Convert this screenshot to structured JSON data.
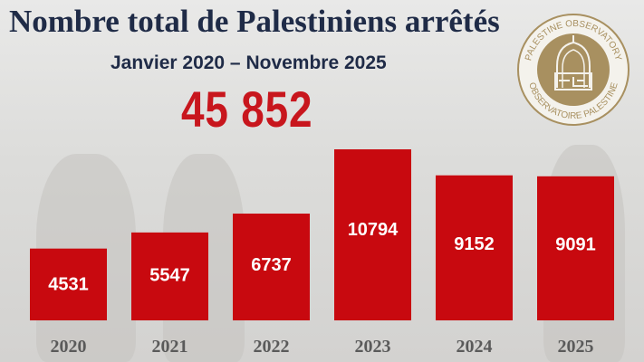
{
  "header": {
    "title": "Nombre total de Palestiniens arrêtés",
    "subtitle": "Janvier 2020 – Novembre 2025",
    "total": "45 852"
  },
  "logo": {
    "top_text": "PALESTINE OBSERVATORY",
    "bottom_text": "OBSERVATOIRE PALESTINE"
  },
  "colors": {
    "bar": "#c8090f",
    "title": "#1f2b47",
    "total": "#c8161d",
    "logo": "#a89060"
  },
  "chart_data": {
    "type": "bar",
    "title": "Nombre total de Palestiniens arrêtés",
    "subtitle": "Janvier 2020 – Novembre 2025",
    "categories": [
      "2020",
      "2021",
      "2022",
      "2023",
      "2024",
      "2025"
    ],
    "values": [
      4531,
      5547,
      6737,
      10794,
      9152,
      9091
    ],
    "xlabel": "",
    "ylabel": "",
    "ylim": [
      0,
      11000
    ],
    "grid": false
  }
}
